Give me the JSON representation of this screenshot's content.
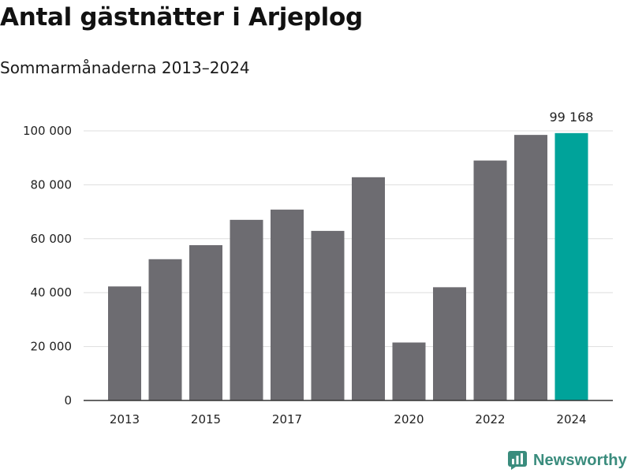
{
  "header": {
    "title": "Antal gästnätter i Arjeplog",
    "subtitle": "Sommarmånaderna 2013–2024"
  },
  "brand": {
    "name": "Newsworthy",
    "icon": "newsworthy-logo-icon"
  },
  "colors": {
    "bar": "#6d6c71",
    "highlight": "#00a39a",
    "grid": "#dddddd",
    "axis": "#333333",
    "brand": "#3a8c7d"
  },
  "chart_data": {
    "type": "bar",
    "title": "Antal gästnätter i Arjeplog",
    "subtitle": "Sommarmånaderna 2013–2024",
    "categories": [
      "2013",
      "2014",
      "2015",
      "2016",
      "2017",
      "2018",
      "2019",
      "2020",
      "2021",
      "2022",
      "2023",
      "2024"
    ],
    "values": [
      42300,
      52400,
      57600,
      67000,
      70800,
      62900,
      82800,
      21500,
      42000,
      89000,
      98500,
      99168
    ],
    "x_tick_labels": [
      "2013",
      "2015",
      "2017",
      "2020",
      "2022",
      "2024"
    ],
    "y_ticks": [
      0,
      20000,
      40000,
      60000,
      80000,
      100000
    ],
    "y_tick_labels": [
      "0",
      "20 000",
      "40 000",
      "60 000",
      "80 000",
      "100 000"
    ],
    "ylim": [
      0,
      100000
    ],
    "highlight_category": "2024",
    "data_labels": [
      {
        "category": "2024",
        "text": "99 168"
      }
    ],
    "xlabel": "",
    "ylabel": "",
    "grid": true,
    "legend": false
  }
}
